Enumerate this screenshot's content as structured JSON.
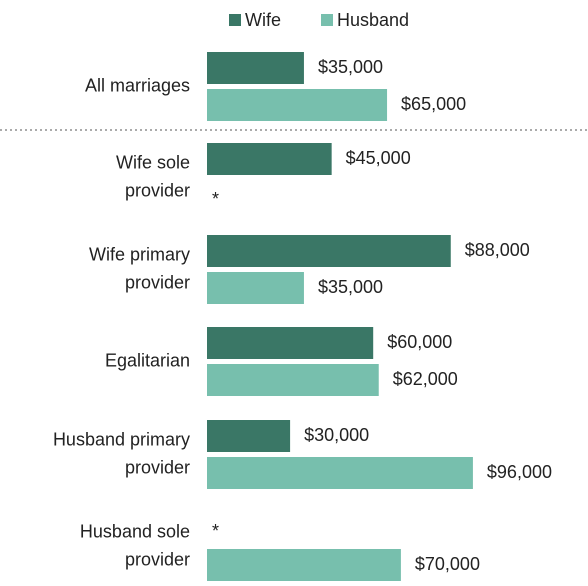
{
  "chart_data": {
    "type": "bar",
    "orientation": "horizontal",
    "categories": [
      [
        "All marriages"
      ],
      [
        "Wife sole",
        "provider"
      ],
      [
        "Wife primary",
        "provider"
      ],
      [
        "Egalitarian"
      ],
      [
        "Husband primary",
        "provider"
      ],
      [
        "Husband sole",
        "provider"
      ]
    ],
    "series": [
      {
        "name": "Wife",
        "color": "#3a7766",
        "values": [
          35000,
          45000,
          88000,
          60000,
          30000,
          null
        ],
        "value_labels": [
          "$35,000",
          "$45,000",
          "$88,000",
          "$60,000",
          "$30,000",
          "*"
        ]
      },
      {
        "name": "Husband",
        "color": "#77bfad",
        "values": [
          65000,
          null,
          35000,
          62000,
          96000,
          70000
        ],
        "value_labels": [
          "$65,000",
          "*",
          "$35,000",
          "$62,000",
          "$96,000",
          "$70,000"
        ]
      }
    ],
    "xlim": [
      0,
      100000
    ],
    "legend": "top"
  }
}
